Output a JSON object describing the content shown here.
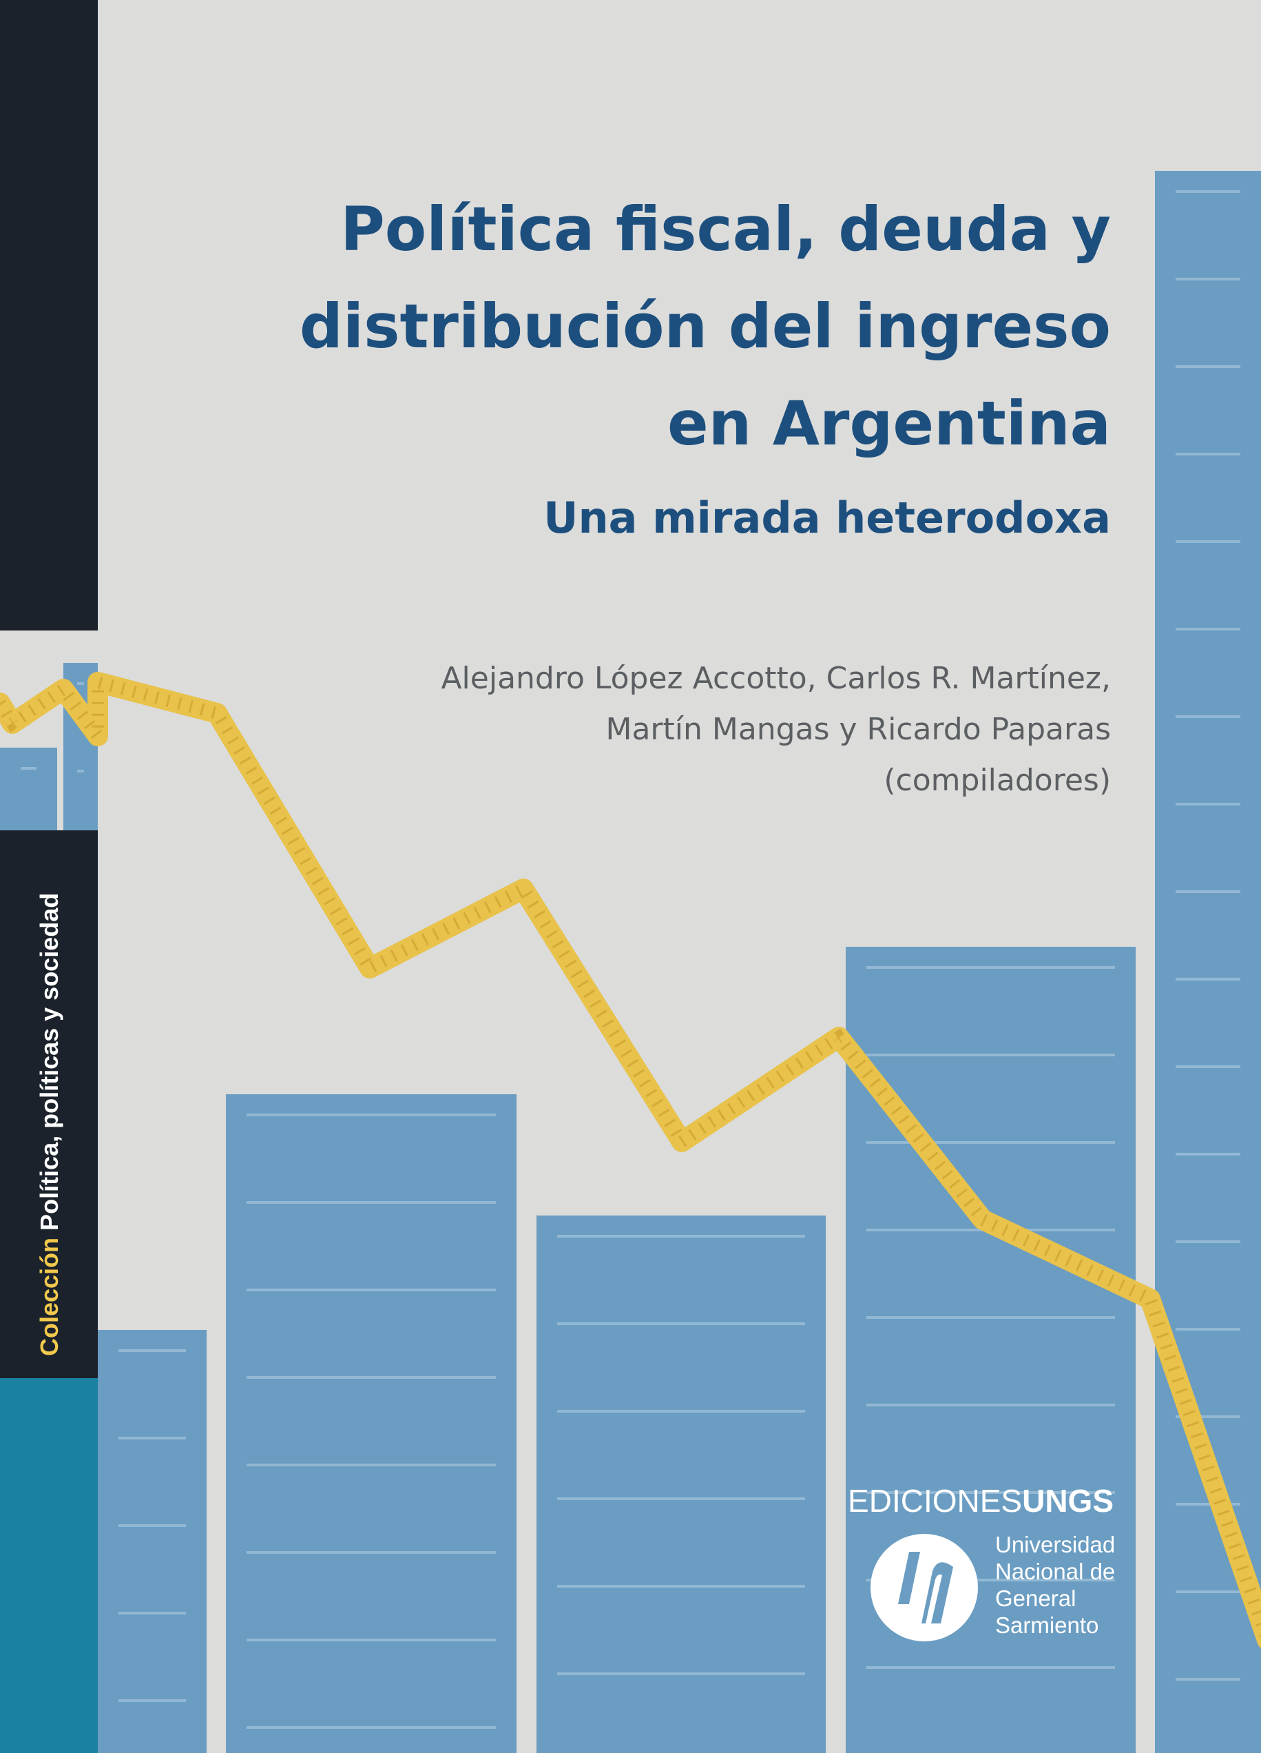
{
  "book": {
    "title_lines": [
      "Política fiscal, deuda y",
      "distribución del ingreso",
      "en Argentina"
    ],
    "subtitle": "Una mirada heterodoxa",
    "authors_lines": [
      "Alejandro López Accotto, Carlos R. Martínez,",
      "Martín Mangas y Ricardo Paparas",
      "(compiladores)"
    ]
  },
  "spine": {
    "collection_prefix": "Colección",
    "collection_name": "Política, políticas y sociedad"
  },
  "publisher": {
    "imprint_light": "EDICIONES",
    "imprint_bold": "UNGS",
    "university_lines": [
      "Universidad",
      "Nacional de",
      "General",
      "Sarmiento"
    ]
  },
  "colors": {
    "background": "#dcdcdb",
    "bar": "#6b9dc2",
    "bar_stripe": "#93b8d4",
    "line": "#e8c24a",
    "line_ticks": "#c99a2a",
    "spine_dark": "#1b222b",
    "spine_teal": "#1a81a2",
    "title": "#1d4f7e",
    "authors": "#5b5f62",
    "collection_accent": "#f2c94c"
  }
}
